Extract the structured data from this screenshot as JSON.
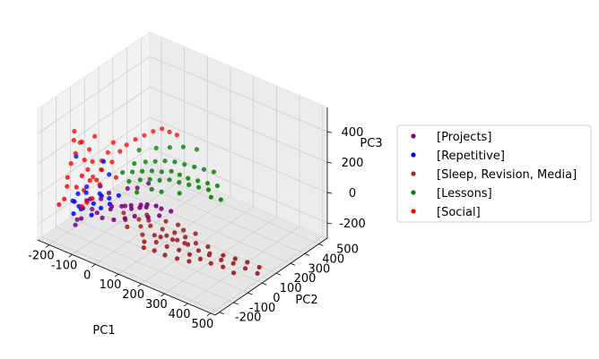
{
  "chart_data": {
    "type": "scatter",
    "projection": "3d",
    "xlabel": "PC1",
    "ylabel": "PC2",
    "zlabel": "PC3",
    "xlim": [
      -250,
      520
    ],
    "ylim": [
      -230,
      560
    ],
    "zlim": [
      -300,
      560
    ],
    "xticks": [
      -200,
      -100,
      0,
      100,
      200,
      300,
      400,
      500
    ],
    "yticks": [
      -200,
      -100,
      0,
      100,
      200,
      300,
      400,
      500
    ],
    "zticks": [
      -200,
      0,
      200,
      400
    ],
    "grid": true,
    "legend_position": "right",
    "series": [
      {
        "name": "[Projects]",
        "color": "#800080",
        "points": [
          [
            -160,
            -110,
            -220
          ],
          [
            -110,
            -150,
            -120
          ],
          [
            -60,
            -120,
            -70
          ],
          [
            -20,
            -90,
            -40
          ],
          [
            10,
            -60,
            -20
          ],
          [
            40,
            -40,
            -30
          ],
          [
            70,
            -30,
            -10
          ],
          [
            90,
            -10,
            10
          ],
          [
            110,
            20,
            -5
          ],
          [
            -130,
            -80,
            -60
          ],
          [
            -80,
            -60,
            -30
          ],
          [
            -40,
            -50,
            -60
          ],
          [
            0,
            -20,
            -50
          ],
          [
            30,
            -70,
            -80
          ],
          [
            60,
            -50,
            -60
          ],
          [
            -100,
            -90,
            -90
          ],
          [
            -50,
            -100,
            -110
          ],
          [
            20,
            -10,
            -40
          ],
          [
            50,
            10,
            -30
          ],
          [
            80,
            0,
            -20
          ],
          [
            120,
            40,
            -30
          ],
          [
            150,
            60,
            -40
          ],
          [
            -20,
            30,
            20
          ],
          [
            10,
            50,
            30
          ],
          [
            40,
            80,
            60
          ],
          [
            -70,
            -20,
            -10
          ],
          [
            -140,
            -130,
            -160
          ],
          [
            0,
            -100,
            -90
          ],
          [
            100,
            -20,
            -60
          ],
          [
            130,
            10,
            -50
          ]
        ]
      },
      {
        "name": "[Repetitive]",
        "color": "#0000ff",
        "points": [
          [
            -180,
            -60,
            -60
          ],
          [
            -150,
            -50,
            -40
          ],
          [
            -120,
            -70,
            -50
          ],
          [
            -170,
            -100,
            -80
          ],
          [
            -130,
            -120,
            -90
          ],
          [
            -100,
            -80,
            -60
          ],
          [
            -90,
            -40,
            -30
          ],
          [
            -160,
            -30,
            -20
          ],
          [
            -140,
            -90,
            -110
          ],
          [
            -110,
            -20,
            -40
          ],
          [
            -80,
            -60,
            -90
          ],
          [
            -190,
            -80,
            -100
          ],
          [
            -150,
            -140,
            -120
          ],
          [
            -120,
            0,
            -10
          ],
          [
            -60,
            -30,
            -70
          ],
          [
            -170,
            -70,
            -130
          ],
          [
            -200,
            -40,
            160
          ],
          [
            -130,
            40,
            120
          ],
          [
            -100,
            30,
            60
          ],
          [
            -40,
            0,
            -20
          ],
          [
            -90,
            -110,
            -110
          ],
          [
            -75,
            -10,
            -55
          ]
        ]
      },
      {
        "name": "[Sleep, Revision, Media]",
        "color": "#a52a2a",
        "points": [
          [
            100,
            -60,
            -150
          ],
          [
            140,
            -40,
            -140
          ],
          [
            180,
            -20,
            -130
          ],
          [
            220,
            -10,
            -140
          ],
          [
            260,
            0,
            -150
          ],
          [
            300,
            10,
            -170
          ],
          [
            340,
            20,
            -180
          ],
          [
            380,
            40,
            -200
          ],
          [
            420,
            60,
            -210
          ],
          [
            460,
            80,
            -230
          ],
          [
            500,
            100,
            -250
          ],
          [
            120,
            -80,
            -170
          ],
          [
            160,
            -60,
            -160
          ],
          [
            200,
            -50,
            -170
          ],
          [
            240,
            -30,
            -180
          ],
          [
            280,
            -20,
            -190
          ],
          [
            320,
            -10,
            -200
          ],
          [
            360,
            0,
            -210
          ],
          [
            400,
            20,
            -220
          ],
          [
            440,
            30,
            -240
          ],
          [
            80,
            -40,
            -120
          ],
          [
            60,
            -20,
            -100
          ],
          [
            40,
            -70,
            -130
          ],
          [
            20,
            -50,
            -110
          ],
          [
            0,
            -30,
            -90
          ],
          [
            150,
            0,
            -120
          ],
          [
            190,
            20,
            -130
          ],
          [
            230,
            30,
            -140
          ],
          [
            270,
            40,
            -160
          ],
          [
            310,
            60,
            -170
          ],
          [
            130,
            -100,
            -190
          ],
          [
            170,
            -90,
            -190
          ],
          [
            210,
            -80,
            -200
          ],
          [
            250,
            -60,
            -210
          ],
          [
            290,
            -40,
            -215
          ],
          [
            110,
            -20,
            -110
          ],
          [
            90,
            0,
            -100
          ],
          [
            70,
            20,
            -90
          ],
          [
            210,
            50,
            -120
          ],
          [
            250,
            70,
            -130
          ],
          [
            330,
            40,
            -190
          ],
          [
            370,
            70,
            -195
          ],
          [
            410,
            90,
            -205
          ],
          [
            450,
            110,
            -215
          ],
          [
            490,
            130,
            -235
          ],
          [
            160,
            -30,
            -145
          ],
          [
            200,
            -10,
            -150
          ],
          [
            240,
            10,
            -160
          ],
          [
            180,
            60,
            -110
          ],
          [
            140,
            40,
            -100
          ]
        ]
      },
      {
        "name": "[Lessons]",
        "color": "#008000",
        "points": [
          [
            -60,
            60,
            80
          ],
          [
            -30,
            80,
            90
          ],
          [
            0,
            100,
            100
          ],
          [
            30,
            120,
            110
          ],
          [
            60,
            140,
            110
          ],
          [
            90,
            160,
            120
          ],
          [
            120,
            170,
            110
          ],
          [
            150,
            180,
            100
          ],
          [
            180,
            200,
            90
          ],
          [
            210,
            220,
            80
          ],
          [
            240,
            240,
            70
          ],
          [
            -40,
            110,
            120
          ],
          [
            -10,
            140,
            130
          ],
          [
            20,
            160,
            140
          ],
          [
            50,
            180,
            150
          ],
          [
            80,
            200,
            150
          ],
          [
            110,
            220,
            140
          ],
          [
            140,
            240,
            130
          ],
          [
            170,
            260,
            120
          ],
          [
            200,
            280,
            110
          ],
          [
            -20,
            40,
            60
          ],
          [
            10,
            70,
            70
          ],
          [
            40,
            90,
            80
          ],
          [
            70,
            110,
            80
          ],
          [
            100,
            130,
            90
          ],
          [
            130,
            150,
            80
          ],
          [
            160,
            170,
            70
          ],
          [
            190,
            190,
            60
          ],
          [
            220,
            210,
            50
          ],
          [
            0,
            200,
            190
          ],
          [
            40,
            230,
            200
          ],
          [
            80,
            260,
            210
          ],
          [
            120,
            290,
            200
          ],
          [
            -50,
            160,
            170
          ],
          [
            60,
            70,
            40
          ],
          [
            90,
            90,
            30
          ],
          [
            150,
            120,
            40
          ],
          [
            250,
            180,
            40
          ],
          [
            280,
            200,
            30
          ],
          [
            20,
            30,
            20
          ]
        ]
      },
      {
        "name": "[Social]",
        "color": "#ff0000",
        "points": [
          [
            -220,
            -20,
            300
          ],
          [
            -210,
            -40,
            260
          ],
          [
            -200,
            0,
            230
          ],
          [
            -190,
            -60,
            200
          ],
          [
            -180,
            20,
            180
          ],
          [
            -170,
            -30,
            150
          ],
          [
            -160,
            10,
            120
          ],
          [
            -150,
            -80,
            90
          ],
          [
            -140,
            40,
            60
          ],
          [
            -130,
            -10,
            30
          ],
          [
            -200,
            -100,
            60
          ],
          [
            -190,
            -120,
            20
          ],
          [
            -180,
            -70,
            -10
          ],
          [
            -170,
            30,
            0
          ],
          [
            -160,
            -50,
            -30
          ],
          [
            -210,
            -60,
            120
          ],
          [
            -220,
            20,
            200
          ],
          [
            -150,
            60,
            100
          ],
          [
            -140,
            -40,
            40
          ],
          [
            -130,
            70,
            160
          ],
          [
            -120,
            10,
            90
          ],
          [
            -110,
            -20,
            20
          ],
          [
            -100,
            50,
            130
          ],
          [
            -90,
            90,
            180
          ],
          [
            -80,
            120,
            210
          ],
          [
            -60,
            150,
            240
          ],
          [
            -40,
            180,
            260
          ],
          [
            -20,
            210,
            280
          ],
          [
            0,
            240,
            290
          ],
          [
            20,
            260,
            270
          ],
          [
            40,
            280,
            250
          ],
          [
            -100,
            -90,
            -20
          ],
          [
            -110,
            -110,
            -40
          ],
          [
            -120,
            -130,
            -60
          ],
          [
            -190,
            -140,
            -50
          ],
          [
            -200,
            -160,
            -80
          ],
          [
            -165,
            -15,
            80
          ],
          [
            -175,
            50,
            250
          ],
          [
            -125,
            100,
            210
          ],
          [
            -70,
            30,
            60
          ]
        ]
      }
    ]
  }
}
